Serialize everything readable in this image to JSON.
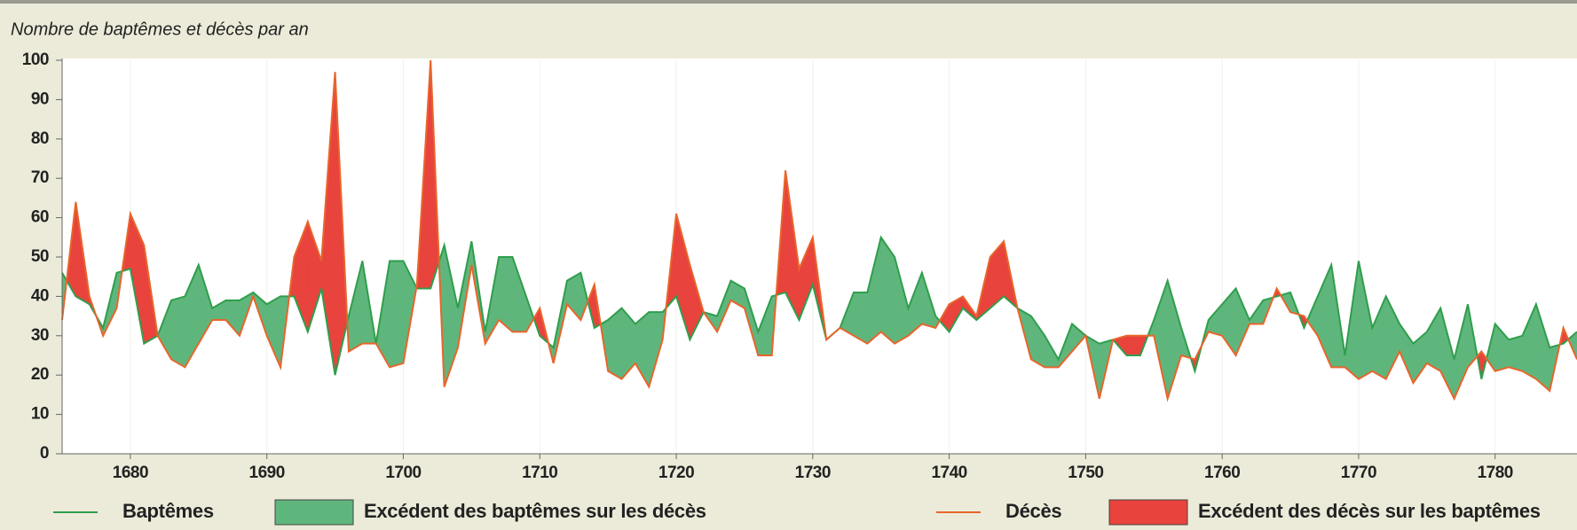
{
  "chart_data": {
    "type": "area_difference",
    "title": "Nombre de baptêmes et décès par an",
    "x": [
      1675,
      1676,
      1677,
      1678,
      1679,
      1680,
      1681,
      1682,
      1683,
      1684,
      1685,
      1686,
      1687,
      1688,
      1689,
      1690,
      1691,
      1692,
      1693,
      1694,
      1695,
      1696,
      1697,
      1698,
      1699,
      1700,
      1701,
      1702,
      1703,
      1704,
      1705,
      1706,
      1707,
      1708,
      1709,
      1710,
      1711,
      1712,
      1713,
      1714,
      1715,
      1716,
      1717,
      1718,
      1719,
      1720,
      1721,
      1722,
      1723,
      1724,
      1725,
      1726,
      1727,
      1728,
      1729,
      1730,
      1731,
      1732,
      1733,
      1734,
      1735,
      1736,
      1737,
      1738,
      1739,
      1740,
      1741,
      1742,
      1743,
      1744,
      1745,
      1746,
      1747,
      1748,
      1749,
      1750,
      1751,
      1752,
      1753,
      1754,
      1755,
      1756,
      1757,
      1758,
      1759,
      1760,
      1761,
      1762,
      1763,
      1764,
      1765,
      1766,
      1767,
      1768,
      1769,
      1770,
      1771,
      1772,
      1773,
      1774,
      1775,
      1776,
      1777,
      1778,
      1779,
      1780,
      1781,
      1782,
      1783,
      1784,
      1785,
      1786
    ],
    "series": [
      {
        "name": "Baptêmes",
        "color": "#2f9e4c",
        "values": [
          46,
          40,
          38,
          32,
          46,
          47,
          28,
          30,
          39,
          40,
          48,
          37,
          39,
          39,
          41,
          38,
          40,
          40,
          31,
          42,
          20,
          35,
          49,
          28,
          49,
          49,
          42,
          42,
          53,
          37,
          54,
          31,
          50,
          50,
          40,
          30,
          27,
          44,
          46,
          32,
          34,
          37,
          33,
          36,
          36,
          40,
          29,
          36,
          35,
          44,
          42,
          31,
          40,
          41,
          34,
          43,
          29,
          32,
          41,
          41,
          55,
          50,
          37,
          46,
          35,
          31,
          37,
          34,
          37,
          40,
          37,
          35,
          30,
          24,
          33,
          30,
          28,
          29,
          25,
          25,
          34,
          44,
          32,
          21,
          34,
          38,
          42,
          34,
          39,
          40,
          41,
          32,
          40,
          48,
          25,
          49,
          32,
          40,
          33,
          28,
          31,
          37,
          24,
          38,
          19,
          33,
          29,
          30,
          38,
          27,
          28,
          31
        ]
      },
      {
        "name": "Décès",
        "color": "#e8652c",
        "values": [
          34,
          64,
          40,
          30,
          37,
          61,
          53,
          30,
          24,
          22,
          28,
          34,
          34,
          30,
          40,
          30,
          22,
          50,
          59,
          49,
          97,
          26,
          28,
          28,
          22,
          23,
          43,
          100,
          17,
          27,
          48,
          28,
          34,
          31,
          31,
          37,
          23,
          38,
          34,
          43,
          21,
          19,
          23,
          17,
          29,
          61,
          48,
          36,
          31,
          39,
          37,
          25,
          25,
          72,
          47,
          55,
          29,
          32,
          30,
          28,
          31,
          28,
          30,
          33,
          32,
          38,
          40,
          35,
          50,
          54,
          37,
          24,
          22,
          22,
          26,
          30,
          14,
          29,
          30,
          30,
          30,
          14,
          25,
          24,
          31,
          30,
          25,
          33,
          33,
          42,
          36,
          35,
          30,
          22,
          22,
          19,
          21,
          19,
          26,
          18,
          23,
          21,
          14,
          22,
          26,
          21,
          22,
          21,
          19,
          16,
          32,
          24
        ]
      }
    ],
    "areas": [
      {
        "name": "Excédent des baptêmes sur les décès",
        "color": "#5fb67c"
      },
      {
        "name": "Excédent des décès sur les baptêmes",
        "color": "#e8433c"
      }
    ],
    "xlim": [
      1675,
      1786
    ],
    "ylim": [
      0,
      100
    ],
    "xticks": [
      1680,
      1690,
      1700,
      1710,
      1720,
      1730,
      1740,
      1750,
      1760,
      1770,
      1780
    ],
    "yticks": [
      0,
      10,
      20,
      30,
      40,
      50,
      60,
      70,
      80,
      90,
      100
    ]
  }
}
